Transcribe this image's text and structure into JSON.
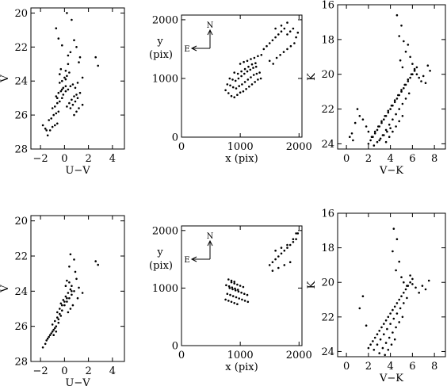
{
  "chart_data": [
    {
      "id": "top-cmd-uv",
      "type": "scatter",
      "xlabel": "U−V",
      "ylabel": "V",
      "xlim": [
        -2.8,
        5
      ],
      "ylim": [
        28,
        19.7
      ],
      "xticks": [
        -2,
        0,
        2,
        4
      ],
      "yticks": [
        20,
        22,
        24,
        26,
        28
      ],
      "xtick_labels": [
        "−2",
        "0",
        "2",
        "4"
      ],
      "ytick_labels": [
        "20",
        "22",
        "24",
        "26",
        "28"
      ],
      "x": [
        0.2,
        0.6,
        -0.7,
        -0.5,
        -0.2,
        0.8,
        1.0,
        0.3,
        0.5,
        1.3,
        1.2,
        2.6,
        2.8,
        0.1,
        -0.4,
        1.5,
        1.1,
        0.9,
        -1.4,
        -1.5,
        -1.6,
        -1.8,
        -1.2,
        -1.0,
        -0.8,
        -0.6,
        -1.3,
        -1.1,
        -0.9,
        -0.7,
        -0.5,
        -1.0,
        -0.8,
        -0.6,
        -0.4,
        -0.2,
        -0.7,
        -0.5,
        -0.3,
        -0.1,
        0.1,
        -0.4,
        -0.2,
        0.0,
        0.2,
        0.4,
        -0.1,
        0.1,
        0.3,
        0.5,
        0.7,
        0.2,
        0.4,
        0.6,
        0.8,
        1.0,
        0.5,
        0.7,
        0.9,
        1.1,
        1.3,
        0.8,
        1.0,
        1.2,
        1.5,
        -0.6,
        -0.2,
        0.1,
        -0.3,
        0.3
      ],
      "y": [
        20.0,
        20.4,
        20.9,
        21.5,
        21.9,
        21.6,
        22.0,
        22.5,
        22.3,
        22.6,
        22.9,
        22.6,
        23.1,
        23.4,
        23.6,
        23.8,
        24.1,
        24.4,
        27.2,
        26.9,
        26.8,
        26.6,
        26.9,
        26.7,
        26.6,
        26.5,
        26.3,
        26.2,
        26.0,
        25.9,
        25.8,
        25.6,
        25.5,
        25.3,
        25.2,
        25.0,
        24.9,
        24.7,
        24.6,
        24.4,
        24.3,
        24.1,
        24.0,
        23.8,
        23.7,
        23.5,
        24.8,
        24.6,
        24.5,
        24.3,
        24.2,
        25.5,
        25.3,
        25.1,
        24.9,
        24.8,
        25.6,
        25.4,
        25.2,
        25.0,
        24.7,
        26.0,
        25.8,
        25.6,
        25.4,
        25.0,
        24.5,
        23.9,
        23.3,
        23.0
      ]
    },
    {
      "id": "top-map",
      "type": "scatter",
      "xlabel": "x (pix)",
      "ylabel": "y",
      "ylabel_line2": "(pix)",
      "xlim": [
        0,
        2050
      ],
      "ylim": [
        0,
        2080
      ],
      "xticks": [
        0,
        1000,
        2000
      ],
      "yticks": [
        0,
        1000,
        2000
      ],
      "xtick_labels": [
        "0",
        "1000",
        "2000"
      ],
      "ytick_labels": [
        "0",
        "1000",
        "2000"
      ],
      "compass": {
        "north": "N",
        "east": "E"
      },
      "x": [
        750,
        800,
        850,
        900,
        950,
        1000,
        1050,
        1100,
        1150,
        1200,
        1250,
        1300,
        1350,
        780,
        830,
        880,
        930,
        980,
        1030,
        1080,
        1130,
        1180,
        1230,
        1280,
        1330,
        820,
        870,
        920,
        970,
        1020,
        1070,
        1120,
        1170,
        1220,
        1270,
        900,
        960,
        1020,
        1080,
        1140,
        1200,
        1260,
        1000,
        1060,
        1120,
        1180,
        1240,
        1300,
        1360,
        1400,
        1450,
        1500,
        1550,
        1600,
        1650,
        1700,
        1750,
        1800,
        1850,
        1900,
        1950,
        1980,
        1500,
        1560,
        1620,
        1680,
        1740,
        1800,
        1860,
        1920,
        1600,
        1700,
        1800
      ],
      "y": [
        800,
        750,
        700,
        680,
        720,
        760,
        780,
        820,
        860,
        900,
        940,
        980,
        1000,
        900,
        880,
        850,
        830,
        870,
        900,
        940,
        980,
        1020,
        1060,
        1080,
        1100,
        1000,
        980,
        960,
        1000,
        1040,
        1080,
        1120,
        1150,
        1180,
        1200,
        1100,
        1080,
        1120,
        1160,
        1200,
        1240,
        1260,
        1250,
        1280,
        1300,
        1330,
        1350,
        1380,
        1400,
        1500,
        1550,
        1600,
        1650,
        1700,
        1750,
        1800,
        1850,
        1750,
        1800,
        1850,
        1700,
        1780,
        1300,
        1250,
        1350,
        1400,
        1450,
        1500,
        1550,
        1600,
        1850,
        1900,
        1950
      ]
    },
    {
      "id": "top-cmd-vk",
      "type": "scatter",
      "xlabel": "V−K",
      "ylabel": "K",
      "xlim": [
        -0.8,
        9
      ],
      "ylim": [
        24.3,
        16
      ],
      "xticks": [
        0,
        2,
        4,
        6,
        8
      ],
      "yticks": [
        16,
        18,
        20,
        22,
        24
      ],
      "xtick_labels": [
        "0",
        "2",
        "4",
        "6",
        "8"
      ],
      "ytick_labels": [
        "16",
        "18",
        "20",
        "22",
        "24"
      ],
      "x": [
        4.6,
        5.0,
        4.8,
        5.2,
        5.4,
        4.9,
        5.1,
        5.6,
        5.8,
        6.0,
        6.2,
        6.4,
        6.6,
        6.8,
        7.0,
        7.2,
        7.4,
        7.6,
        1.0,
        1.2,
        0.8,
        1.5,
        1.8,
        2.0,
        0.5,
        0.3,
        0.6,
        2.0,
        2.2,
        2.4,
        2.6,
        2.8,
        3.0,
        3.2,
        3.4,
        3.6,
        3.8,
        4.0,
        4.2,
        4.4,
        4.6,
        4.8,
        5.0,
        5.2,
        5.4,
        5.6,
        5.8,
        6.0,
        6.2,
        6.4,
        2.3,
        2.6,
        2.9,
        3.2,
        3.5,
        3.8,
        4.1,
        4.4,
        4.7,
        5.0,
        5.3,
        5.6,
        5.9,
        6.2,
        3.0,
        3.3,
        3.6,
        3.9,
        4.2,
        4.5,
        4.8,
        5.1,
        5.4,
        5.7,
        3.6,
        3.9,
        4.2,
        4.5,
        4.8,
        5.1,
        2.5,
        2.8,
        3.1,
        3.4,
        3.7,
        4.0
      ],
      "y": [
        16.6,
        17.2,
        17.8,
        18.1,
        18.7,
        19.2,
        19.6,
        18.3,
        19.0,
        19.4,
        19.8,
        20.0,
        20.2,
        20.4,
        20.1,
        20.5,
        19.5,
        19.8,
        22.0,
        22.4,
        22.8,
        22.6,
        23.0,
        23.3,
        23.4,
        23.6,
        23.8,
        24.0,
        23.8,
        23.6,
        23.4,
        23.2,
        23.0,
        22.8,
        22.6,
        22.4,
        22.2,
        22.0,
        21.8,
        21.6,
        21.4,
        21.2,
        21.0,
        20.8,
        20.6,
        20.4,
        20.2,
        20.0,
        19.8,
        19.6,
        23.6,
        23.3,
        23.0,
        22.7,
        22.4,
        22.1,
        21.8,
        21.5,
        21.2,
        20.9,
        20.6,
        20.3,
        20.0,
        19.7,
        23.8,
        23.5,
        23.2,
        22.9,
        22.6,
        22.3,
        22.0,
        21.7,
        21.4,
        21.1,
        23.9,
        23.6,
        23.3,
        23.0,
        22.7,
        22.4,
        24.1,
        23.9,
        23.7,
        23.5,
        23.3,
        23.1
      ]
    },
    {
      "id": "bottom-cmd-uv",
      "type": "scatter",
      "xlabel": "U−V",
      "ylabel": "V",
      "xlim": [
        -2.8,
        5
      ],
      "ylim": [
        28,
        19.7
      ],
      "xticks": [
        -2,
        0,
        2,
        4
      ],
      "yticks": [
        20,
        22,
        24,
        26,
        28
      ],
      "xtick_labels": [
        "−2",
        "0",
        "2",
        "4"
      ],
      "ytick_labels": [
        "20",
        "22",
        "24",
        "26",
        "28"
      ],
      "x": [
        0.5,
        0.8,
        0.4,
        0.9,
        1.0,
        0.2,
        0.6,
        2.6,
        2.8,
        1.2,
        1.5,
        1.1,
        -1.8,
        -1.6,
        -1.5,
        -1.4,
        -1.2,
        -1.0,
        -0.8,
        -1.3,
        -1.1,
        -0.9,
        -0.7,
        -0.5,
        -1.0,
        -0.8,
        -0.6,
        -0.4,
        -0.2,
        -0.6,
        -0.4,
        -0.2,
        0.0,
        0.2,
        -0.3,
        -0.1,
        0.1,
        0.3,
        0.5,
        0.0,
        0.2,
        0.4,
        0.6,
        0.8,
        0.3,
        0.5,
        0.7,
        -0.5,
        -0.3,
        0.1,
        0.4,
        0.6,
        -0.7,
        -0.9
      ],
      "y": [
        21.9,
        22.2,
        22.6,
        22.9,
        23.3,
        23.4,
        23.7,
        22.3,
        22.5,
        23.8,
        24.1,
        24.4,
        27.2,
        27.0,
        26.8,
        26.7,
        26.5,
        26.3,
        26.1,
        26.6,
        26.4,
        26.2,
        26.0,
        25.8,
        25.9,
        25.7,
        25.5,
        25.3,
        25.1,
        25.2,
        25.0,
        24.8,
        24.6,
        24.4,
        24.7,
        24.5,
        24.3,
        24.1,
        23.9,
        24.8,
        24.6,
        24.4,
        24.2,
        24.0,
        25.2,
        25.0,
        24.8,
        25.6,
        25.4,
        23.7,
        23.5,
        24.0,
        26.3,
        26.5
      ]
    },
    {
      "id": "bottom-map",
      "type": "scatter",
      "xlabel": "x (pix)",
      "ylabel": "y",
      "ylabel_line2": "(pix)",
      "xlim": [
        0,
        2050
      ],
      "ylim": [
        0,
        2080
      ],
      "xticks": [
        0,
        1000,
        2000
      ],
      "yticks": [
        0,
        1000,
        2000
      ],
      "xtick_labels": [
        "0",
        "1000",
        "2000"
      ],
      "ytick_labels": [
        "0",
        "1000",
        "2000"
      ],
      "compass": {
        "north": "N",
        "east": "E"
      },
      "x": [
        750,
        800,
        850,
        900,
        950,
        780,
        830,
        880,
        930,
        980,
        1030,
        1080,
        1130,
        820,
        870,
        920,
        970,
        1020,
        1070,
        1120,
        760,
        810,
        860,
        910,
        960,
        850,
        900,
        950,
        1000,
        1050,
        800,
        850,
        900,
        1500,
        1550,
        1600,
        1650,
        1700,
        1750,
        1800,
        1850,
        1900,
        1950,
        1980,
        1550,
        1650,
        1750,
        1850,
        1600,
        1700,
        1800,
        1900,
        1950
      ],
      "y": [
        800,
        780,
        760,
        740,
        720,
        900,
        880,
        860,
        840,
        820,
        800,
        780,
        760,
        1000,
        980,
        960,
        940,
        920,
        900,
        880,
        1050,
        1030,
        1010,
        990,
        970,
        1100,
        1080,
        1060,
        1040,
        1020,
        1150,
        1130,
        1110,
        1400,
        1450,
        1500,
        1550,
        1600,
        1650,
        1700,
        1750,
        1800,
        1850,
        1950,
        1300,
        1350,
        1400,
        1450,
        1650,
        1700,
        1750,
        1850,
        1950
      ]
    },
    {
      "id": "bottom-cmd-vk",
      "type": "scatter",
      "xlabel": "V−K",
      "ylabel": "K",
      "xlim": [
        -0.8,
        9
      ],
      "ylim": [
        24.3,
        16
      ],
      "xticks": [
        0,
        2,
        4,
        6,
        8
      ],
      "yticks": [
        16,
        18,
        20,
        22,
        24
      ],
      "xtick_labels": [
        "0",
        "2",
        "4",
        "6",
        "8"
      ],
      "ytick_labels": [
        "16",
        "18",
        "20",
        "22",
        "24"
      ],
      "x": [
        4.3,
        4.6,
        4.2,
        4.8,
        4.5,
        5.0,
        5.2,
        5.5,
        5.8,
        6.0,
        6.3,
        6.6,
        6.9,
        7.2,
        7.5,
        1.5,
        1.2,
        1.8,
        2.0,
        2.2,
        2.4,
        2.6,
        2.8,
        3.0,
        3.2,
        3.4,
        3.6,
        3.8,
        4.0,
        4.2,
        4.4,
        4.6,
        4.8,
        5.0,
        5.2,
        5.4,
        5.6,
        5.8,
        6.0,
        2.5,
        2.8,
        3.1,
        3.4,
        3.7,
        4.0,
        4.3,
        4.6,
        4.9,
        5.2,
        5.5,
        3.0,
        3.3,
        3.6,
        3.9,
        4.2,
        4.5,
        4.8,
        5.1,
        3.5,
        3.8,
        4.1,
        4.4
      ],
      "y": [
        16.9,
        17.5,
        18.2,
        18.8,
        19.3,
        19.7,
        20.0,
        20.2,
        19.6,
        20.1,
        20.3,
        20.6,
        20.2,
        20.4,
        19.9,
        20.8,
        21.5,
        22.5,
        23.8,
        23.6,
        23.4,
        23.2,
        23.0,
        22.8,
        22.6,
        22.4,
        22.2,
        22.0,
        21.8,
        21.6,
        21.4,
        21.2,
        21.0,
        20.8,
        20.6,
        20.4,
        20.2,
        20.0,
        19.8,
        23.9,
        23.6,
        23.3,
        23.0,
        22.7,
        22.4,
        22.1,
        21.8,
        21.5,
        21.2,
        20.9,
        24.1,
        23.8,
        23.5,
        23.2,
        22.9,
        22.6,
        22.3,
        22.0,
        24.2,
        23.9,
        23.6,
        23.3
      ]
    }
  ]
}
